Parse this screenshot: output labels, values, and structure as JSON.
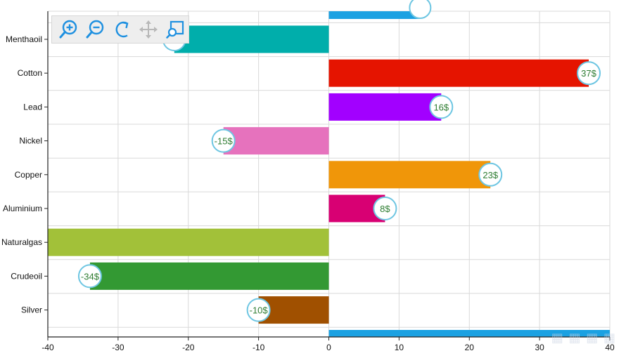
{
  "chart_data": {
    "type": "bar",
    "orientation": "horizontal",
    "categories": [
      "Menthaoil",
      "Cotton",
      "Lead",
      "Nickel",
      "Copper",
      "Aluminium",
      "Naturalgas",
      "Crudeoil",
      "Silver"
    ],
    "values": [
      -22,
      37,
      16,
      -15,
      23,
      8,
      -40,
      -34,
      -10
    ],
    "data_labels": [
      "",
      "37$",
      "16$",
      "-15$",
      "23$",
      "8$",
      "",
      "-34$",
      "-10$"
    ],
    "colors": [
      "#00aeab",
      "#e51400",
      "#a200ff",
      "#e672bd",
      "#f09609",
      "#d80073",
      "#a2c139",
      "#339933",
      "#a05000"
    ],
    "partial_bar_color": "#1ba1e2",
    "xlim": [
      -40,
      40
    ],
    "x_ticks": [
      "-40",
      "-30",
      "-20",
      "-10",
      "0",
      "10",
      "20",
      "30",
      "40"
    ],
    "grid": true,
    "title": "",
    "xlabel": "",
    "ylabel": ""
  },
  "toolbar": {
    "items": [
      {
        "name": "zoom-in",
        "icon": "zoom-in-icon",
        "enabled": true
      },
      {
        "name": "zoom-out",
        "icon": "zoom-out-icon",
        "enabled": true
      },
      {
        "name": "reset",
        "icon": "refresh-icon",
        "enabled": true
      },
      {
        "name": "pan",
        "icon": "move-icon",
        "enabled": false
      },
      {
        "name": "selection-zoom",
        "icon": "selection-zoom-icon",
        "enabled": true
      }
    ],
    "accent_color": "#1e90e0",
    "disabled_color": "#b8b8b8"
  }
}
